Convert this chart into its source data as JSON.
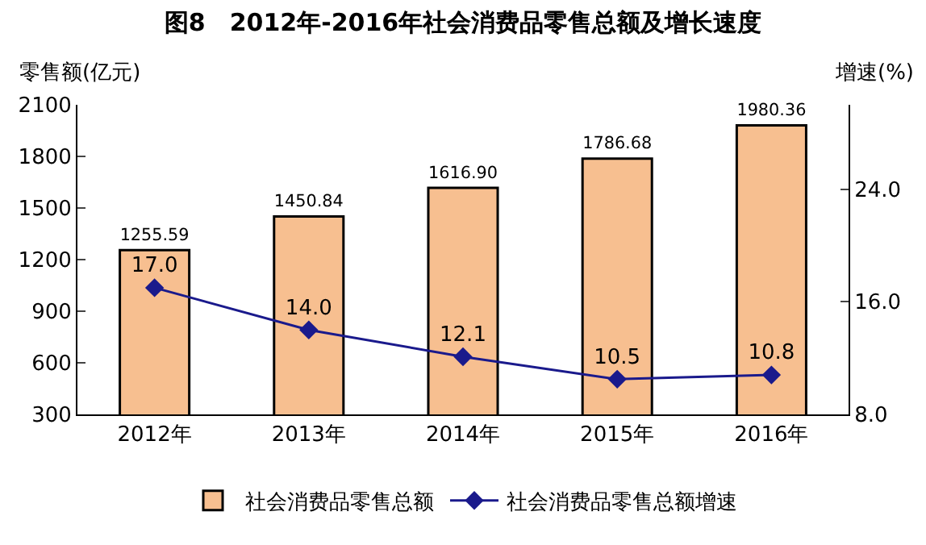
{
  "chart_data": {
    "type": "bar",
    "title": "图8　2012年-2016年社会消费品零售总额及增长速度",
    "ylabel": "零售额(亿元)",
    "y2label": "增速(%)",
    "categories": [
      "2012年",
      "2013年",
      "2014年",
      "2015年",
      "2016年"
    ],
    "series": [
      {
        "name": "社会消费品零售总额",
        "color": "#f7bf90",
        "values": [
          1255.59,
          1450.84,
          1616.9,
          1786.68,
          1980.36
        ],
        "value_labels": [
          "1255.59",
          "1450.84",
          "1616.90",
          "1786.68",
          "1980.36"
        ]
      },
      {
        "name": "社会消费品零售总额增速",
        "type": "line",
        "axis": "y2",
        "color": "#1a1a8c",
        "marker": "diamond",
        "values": [
          17.0,
          14.0,
          12.1,
          10.5,
          10.8
        ],
        "value_labels": [
          "17.0",
          "14.0",
          "12.1",
          "10.5",
          "10.8"
        ]
      }
    ],
    "ylim": [
      300,
      2100
    ],
    "yticks": [
      300,
      600,
      900,
      1200,
      1500,
      1800,
      2100
    ],
    "y2lim": [
      8,
      30
    ],
    "y2ticks": [
      {
        "value": 8,
        "label": "8.0"
      },
      {
        "value": 16,
        "label": "16.0"
      },
      {
        "value": 24,
        "label": "24.0"
      }
    ],
    "legend": "bottom"
  }
}
